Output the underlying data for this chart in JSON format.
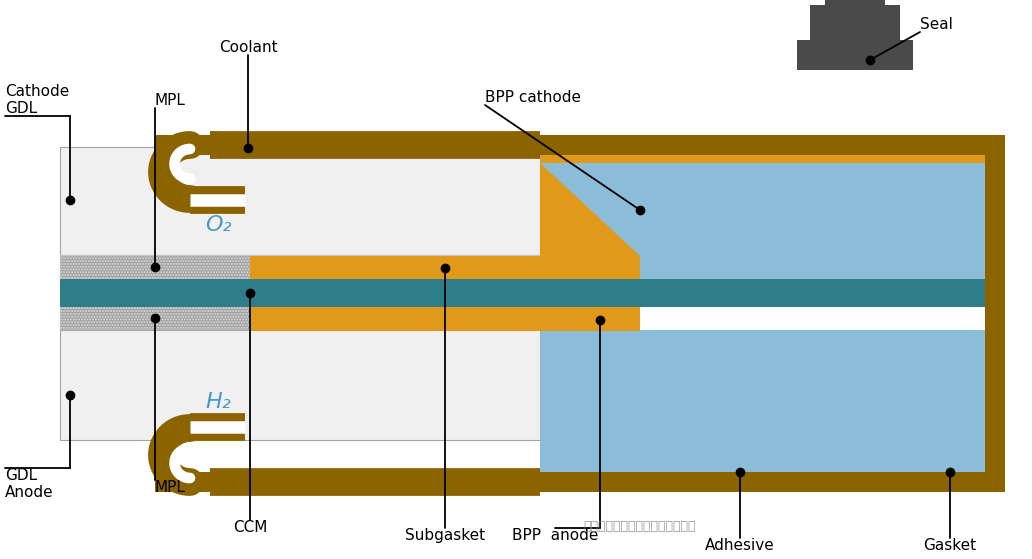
{
  "bg_color": "#ffffff",
  "fig_w": 10.32,
  "fig_h": 5.59,
  "colors": {
    "gdl_face": "#f0f0f0",
    "gdl_hatch": "#aaaaaa",
    "mpl_face": "#a0a0a0",
    "mpl_dot": "#cccccc",
    "membrane": "#2d7d8a",
    "orange": "#e09918",
    "blue_bpp": "#8bbdd9",
    "dark_brown": "#8B6400",
    "seal_gray": "#4a4a4a",
    "white": "#ffffff",
    "black": "#000000",
    "text_blue": "#4499cc",
    "light_gray": "#dddddd"
  },
  "labels": {
    "cathode_gdl": "Cathode\nGDL",
    "mpl_top": "MPL",
    "mpl_bot": "MPL",
    "gdl_anode": "GDL\nAnode",
    "ccm": "CCM",
    "subgasket": "Subgasket",
    "bpp_anode": "BPP  anode",
    "adhesive": "Adhesive",
    "gasket": "Gasket",
    "coolant": "Coolant",
    "bpp_cathode": "BPP cathode",
    "seal": "Seal",
    "o2": "O₂",
    "h2": "H₂",
    "watermark": "公众号．氢燃料电池技术共享平台"
  }
}
